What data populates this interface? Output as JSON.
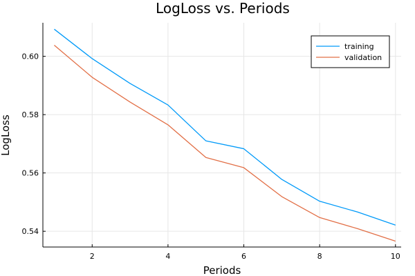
{
  "chart_data": {
    "type": "line",
    "title": "LogLoss vs. Periods",
    "xlabel": "Periods",
    "ylabel": "LogLoss",
    "x": [
      1,
      2,
      3,
      4,
      5,
      6,
      7,
      8,
      9,
      10
    ],
    "xlim": [
      0.7,
      10.15
    ],
    "ylim": [
      0.5346,
      0.6115
    ],
    "xticks": [
      2,
      4,
      6,
      8,
      10
    ],
    "yticks": [
      0.54,
      0.56,
      0.58,
      0.6
    ],
    "xtick_labels": [
      "2",
      "4",
      "6",
      "8",
      "10"
    ],
    "ytick_labels": [
      "0.54",
      "0.56",
      "0.58",
      "0.60"
    ],
    "grid": true,
    "legend_position": "top-right",
    "series": [
      {
        "name": "training",
        "color": "#009af9",
        "values": [
          0.6093,
          0.5992,
          0.5907,
          0.5833,
          0.571,
          0.5683,
          0.5578,
          0.5503,
          0.5466,
          0.5421
        ]
      },
      {
        "name": "validation",
        "color": "#e26f46",
        "values": [
          0.6038,
          0.5928,
          0.5843,
          0.5765,
          0.5653,
          0.5618,
          0.5519,
          0.5447,
          0.5409,
          0.5366
        ]
      }
    ]
  }
}
